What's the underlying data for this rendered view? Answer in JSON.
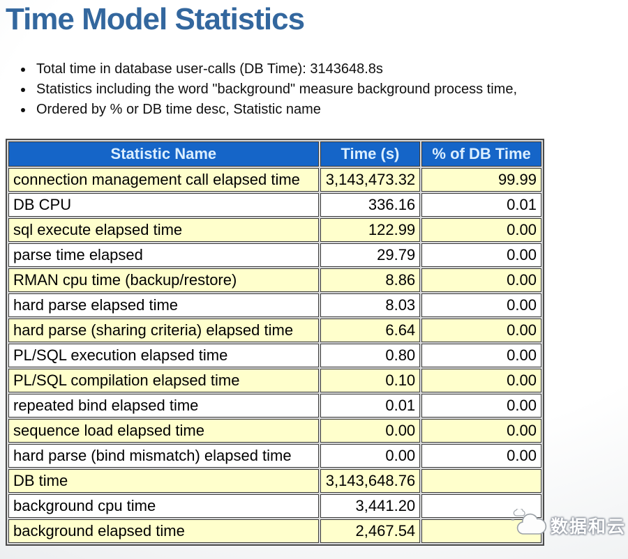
{
  "page": {
    "title": "Time Model Statistics"
  },
  "notes": [
    "Total time in database user-calls (DB Time): 3143648.8s",
    "Statistics including the word \"background\" measure background process time,",
    "Ordered by % or DB time desc, Statistic name"
  ],
  "table": {
    "columns": [
      "Statistic Name",
      "Time (s)",
      "% of DB Time"
    ],
    "rows": [
      {
        "name": "connection management call elapsed time",
        "time": "3,143,473.32",
        "pct": "99.99"
      },
      {
        "name": "DB CPU",
        "time": "336.16",
        "pct": "0.01"
      },
      {
        "name": "sql execute elapsed time",
        "time": "122.99",
        "pct": "0.00"
      },
      {
        "name": "parse time elapsed",
        "time": "29.79",
        "pct": "0.00"
      },
      {
        "name": "RMAN cpu time (backup/restore)",
        "time": "8.86",
        "pct": "0.00"
      },
      {
        "name": "hard parse elapsed time",
        "time": "8.03",
        "pct": "0.00"
      },
      {
        "name": "hard parse (sharing criteria) elapsed time",
        "time": "6.64",
        "pct": "0.00"
      },
      {
        "name": "PL/SQL execution elapsed time",
        "time": "0.80",
        "pct": "0.00"
      },
      {
        "name": "PL/SQL compilation elapsed time",
        "time": "0.10",
        "pct": "0.00"
      },
      {
        "name": "repeated bind elapsed time",
        "time": "0.01",
        "pct": "0.00"
      },
      {
        "name": "sequence load elapsed time",
        "time": "0.00",
        "pct": "0.00"
      },
      {
        "name": "hard parse (bind mismatch) elapsed time",
        "time": "0.00",
        "pct": "0.00"
      },
      {
        "name": "DB time",
        "time": "3,143,648.76",
        "pct": ""
      },
      {
        "name": "background cpu time",
        "time": "3,441.20",
        "pct": ""
      },
      {
        "name": "background elapsed time",
        "time": "2,467.54",
        "pct": ""
      }
    ]
  },
  "watermark": {
    "text": "数据和云",
    "icon": "cloud-logo-icon"
  },
  "colors": {
    "title_color": "#33679E",
    "header_bg": "#1565C8",
    "header_text": "#DCEFFF",
    "row_bg": "#FFFFFF",
    "row_alt_bg": "#FFFFCC",
    "border_dark": "#3A3A3A",
    "table_gap": "#D9DADB"
  }
}
